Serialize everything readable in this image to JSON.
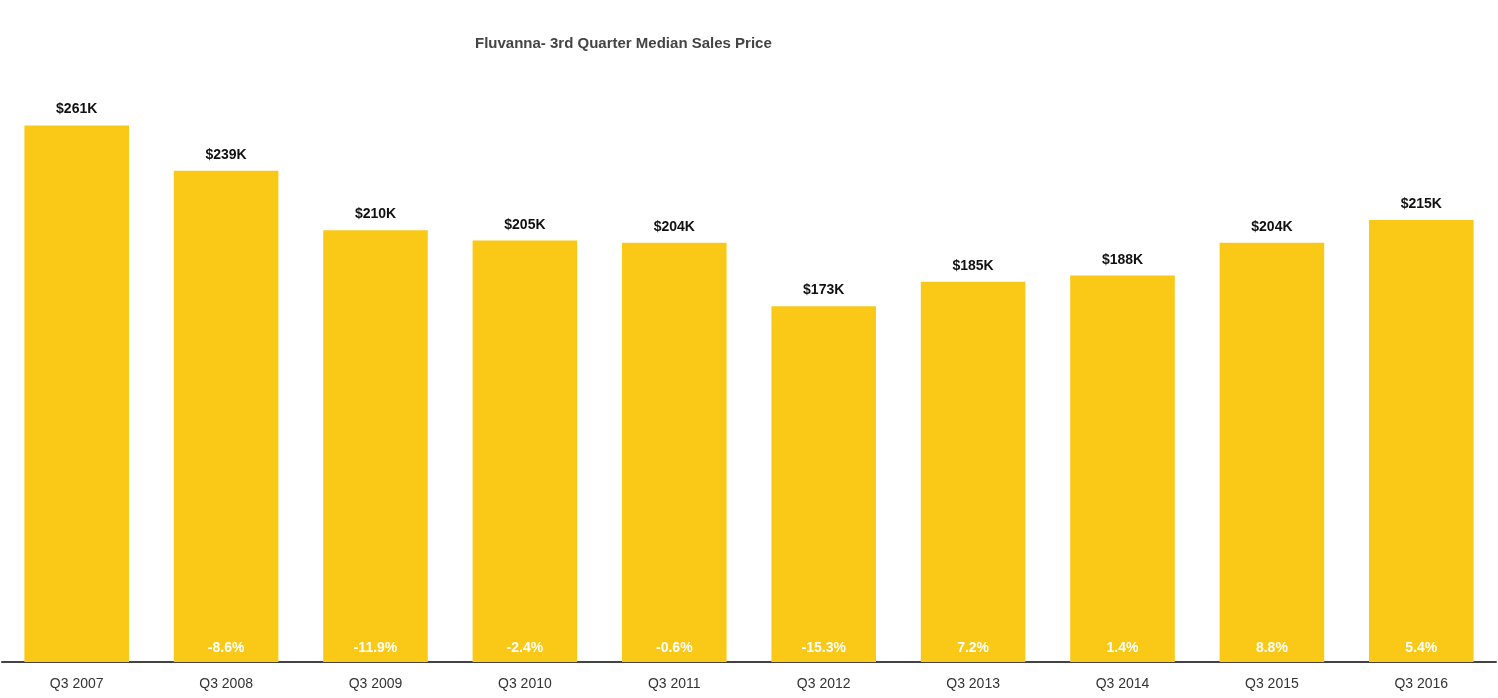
{
  "chart_data": {
    "type": "bar",
    "title": "Fluvanna- 3rd Quarter Median Sales Price",
    "categories": [
      "Q3 2007",
      "Q3 2008",
      "Q3 2009",
      "Q3 2010",
      "Q3 2011",
      "Q3 2012",
      "Q3 2013",
      "Q3 2014",
      "Q3 2015",
      "Q3 2016"
    ],
    "series": [
      {
        "color": "#fac817",
        "values": [
          261,
          239,
          210,
          205,
          204,
          173,
          185,
          188,
          204,
          215
        ],
        "value_labels": [
          "$261K",
          "$239K",
          "$210K",
          "$205K",
          "$204K",
          "$173K",
          "$185K",
          "$188K",
          "$204K",
          "$215K"
        ]
      }
    ],
    "annotations": [
      {
        "text": "-8.6%",
        "x": "Q3 2008",
        "y": 0
      },
      {
        "text": "-11.9%",
        "x": "Q3 2009",
        "y": 0
      },
      {
        "text": "-2.4%",
        "x": "Q3 2010",
        "y": 0
      },
      {
        "text": "-0.6%",
        "x": "Q3 2011",
        "y": 0
      },
      {
        "text": "-15.3%",
        "x": "Q3 2012",
        "y": 0
      },
      {
        "text": "7.2%",
        "x": "Q3 2013",
        "y": 0
      },
      {
        "text": "1.4%",
        "x": "Q3 2014",
        "y": 0
      },
      {
        "text": "8.8%",
        "x": "Q3 2015",
        "y": 0
      },
      {
        "text": "5.4%",
        "x": "Q3 2016",
        "y": 0
      }
    ]
  }
}
